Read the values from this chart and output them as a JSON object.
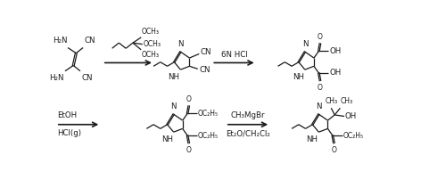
{
  "bg_color": "#ffffff",
  "line_color": "#1a1a1a",
  "fig_width": 4.72,
  "fig_height": 2.02,
  "dpi": 100,
  "arrow2_label": "6N HCl",
  "arrow3_label_top": "EtOH",
  "arrow3_label_bot": "HCl(g)",
  "arrow4_label_top": "CH₃MgBr",
  "arrow4_label_bot": "Et₂O/CH₂Cl₂",
  "reagent1_line1": "OCH₃",
  "reagent1_line2": "OCH₃",
  "reagent1_line3": "OCH₃"
}
